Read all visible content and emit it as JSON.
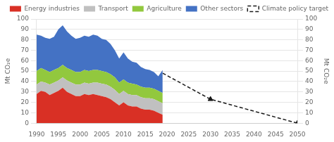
{
  "chart_data": {
    "type": "area",
    "stacked": true,
    "grid": "y",
    "legend": "upper right",
    "ylabel": "Mt CO₂e",
    "y2label": "Mt CO₂e",
    "xlim": [
      1990,
      2050
    ],
    "xticks": [
      1990,
      1995,
      2000,
      2005,
      2010,
      2015,
      2020,
      2025,
      2030,
      2035,
      2040,
      2045,
      2050
    ],
    "ylim": [
      0,
      100
    ],
    "yticks": [
      0,
      10,
      20,
      30,
      40,
      50,
      60,
      70,
      80,
      90,
      100
    ],
    "y2lim": [
      0,
      100
    ],
    "y2ticks": [
      0,
      10,
      20,
      30,
      40,
      50,
      60,
      70,
      80,
      90,
      100
    ],
    "series": [
      {
        "name": "Energy industries",
        "color": "#d93025",
        "x": [
          1990,
          1991,
          1992,
          1993,
          1994,
          1995,
          1996,
          1997,
          1998,
          1999,
          2000,
          2001,
          2002,
          2003,
          2004,
          2005,
          2006,
          2007,
          2008,
          2009,
          2010,
          2011,
          2012,
          2013,
          2014,
          2015,
          2016,
          2017,
          2018,
          2019
        ],
        "values": [
          28,
          31,
          30,
          27,
          29,
          31,
          34,
          30,
          28,
          26,
          26,
          28,
          27,
          28,
          27,
          26,
          25,
          23,
          20,
          17,
          20,
          17,
          16,
          16,
          14,
          13,
          13,
          12,
          10,
          8
        ]
      },
      {
        "name": "Transport",
        "color": "#c0c0c0",
        "x": [
          1990,
          1991,
          1992,
          1993,
          1994,
          1995,
          1996,
          1997,
          1998,
          1999,
          2000,
          2001,
          2002,
          2003,
          2004,
          2005,
          2006,
          2007,
          2008,
          2009,
          2010,
          2011,
          2012,
          2013,
          2014,
          2015,
          2016,
          2017,
          2018,
          2019
        ],
        "values": [
          9,
          9,
          9,
          10,
          10,
          10,
          10,
          11,
          11,
          11,
          11,
          11,
          11,
          11,
          12,
          12,
          12,
          12,
          12,
          11,
          11,
          11,
          11,
          11,
          11,
          11,
          11,
          11,
          11,
          11
        ]
      },
      {
        "name": "Agriculture",
        "color": "#92c83e",
        "x": [
          1990,
          1991,
          1992,
          1993,
          1994,
          1995,
          1996,
          1997,
          1998,
          1999,
          2000,
          2001,
          2002,
          2003,
          2004,
          2005,
          2006,
          2007,
          2008,
          2009,
          2010,
          2011,
          2012,
          2013,
          2014,
          2015,
          2016,
          2017,
          2018,
          2019
        ],
        "values": [
          13,
          13,
          12,
          12,
          12,
          12,
          12,
          12,
          12,
          12,
          12,
          12,
          12,
          12,
          12,
          12,
          12,
          12,
          12,
          11,
          11,
          11,
          11,
          10,
          10,
          10,
          10,
          10,
          10,
          10
        ]
      },
      {
        "name": "Other sectors",
        "color": "#4472c4",
        "x": [
          1990,
          1991,
          1992,
          1993,
          1994,
          1995,
          1996,
          1997,
          1998,
          1999,
          2000,
          2001,
          2002,
          2003,
          2004,
          2005,
          2006,
          2007,
          2008,
          2009,
          2010,
          2011,
          2012,
          2013,
          2014,
          2015,
          2016,
          2017,
          2018,
          2019
        ],
        "values": [
          35,
          31,
          31,
          32,
          32,
          37,
          38,
          35,
          33,
          32,
          33,
          33,
          33,
          34,
          33,
          31,
          31,
          29,
          26,
          23,
          26,
          23,
          21,
          21,
          19,
          18,
          17,
          16,
          14,
          22
        ]
      },
      {
        "name": "Climate policy target",
        "type": "line",
        "line_style": "dashed",
        "color": "#1a1a1a",
        "axis": "y2",
        "x": [
          2019,
          2030,
          2050
        ],
        "values": [
          48,
          23,
          0
        ]
      },
      {
        "type": "scatter",
        "marker": "triangle",
        "color": "#1a1a1a",
        "axis": "y2",
        "x": [
          2030,
          2050
        ],
        "values": [
          23,
          0
        ]
      }
    ]
  }
}
